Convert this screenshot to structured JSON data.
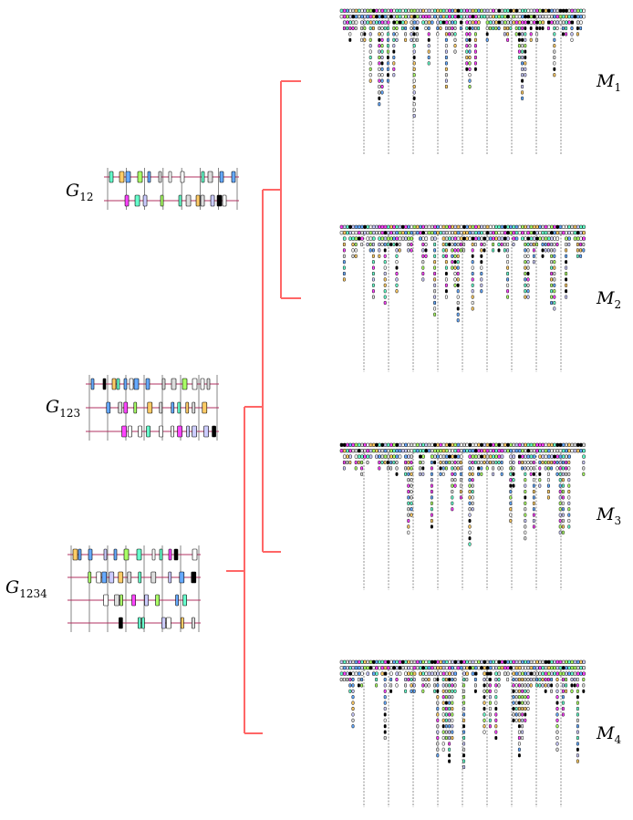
{
  "labels": {
    "G12": {
      "main": "G",
      "sub": "12"
    },
    "G123": {
      "main": "G",
      "sub": "123"
    },
    "G1234": {
      "main": "G",
      "sub": "1234"
    },
    "M1": {
      "main": "M",
      "sub": "1"
    },
    "M2": {
      "main": "M",
      "sub": "2"
    },
    "M3": {
      "main": "M",
      "sub": "3"
    },
    "M4": {
      "main": "M",
      "sub": "4"
    }
  },
  "colors": {
    "tree": "#ff6666",
    "track": "#b03060",
    "mark_palette": [
      "#ff44ff",
      "#aaff66",
      "#66ffcc",
      "#ffffff",
      "#dddddd",
      "#000000",
      "#ffcc66",
      "#66aaff",
      "#ccccff"
    ]
  }
}
